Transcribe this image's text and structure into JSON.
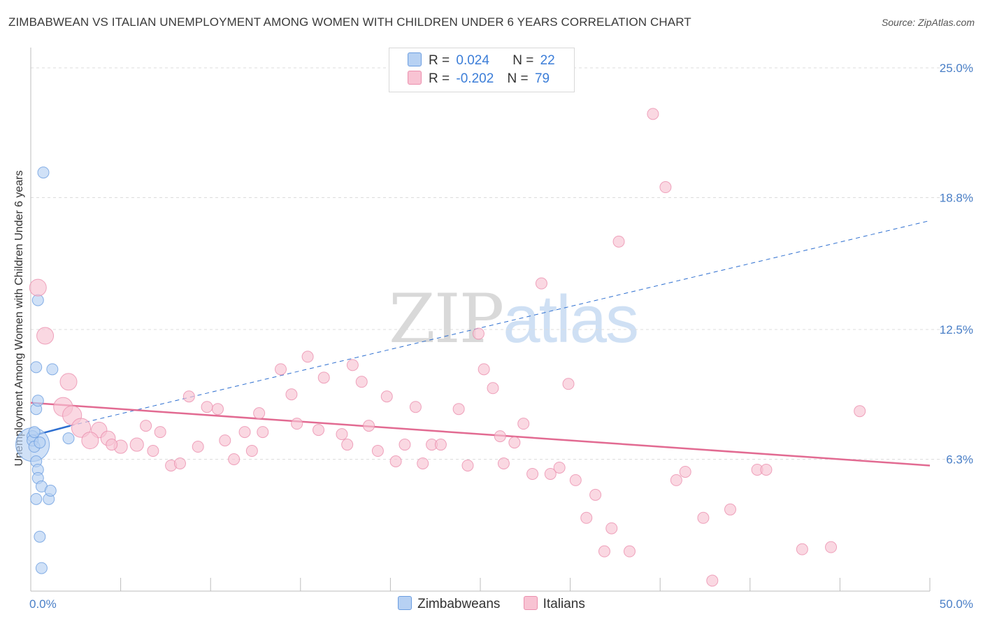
{
  "title": "ZIMBABWEAN VS ITALIAN UNEMPLOYMENT AMONG WOMEN WITH CHILDREN UNDER 6 YEARS CORRELATION CHART",
  "source": "Source: ZipAtlas.com",
  "watermark": {
    "zip": "ZIP",
    "atlas": "atlas"
  },
  "legend": {
    "zimbabweans": {
      "r_label": "R =",
      "r_value": "0.024",
      "n_label": "N =",
      "n_value": "22"
    },
    "italians": {
      "r_label": "R =",
      "r_value": "-0.202",
      "n_label": "N =",
      "n_value": "79"
    }
  },
  "bottom_legend": {
    "zimbabweans": "Zimbabweans",
    "italians": "Italians"
  },
  "colors": {
    "zimbabweans_fill": "#b7d1f3",
    "zimbabweans_stroke": "#6b9de0",
    "zimbabweans_line": "#2e6fd0",
    "italians_fill": "#f8c3d3",
    "italians_stroke": "#eb8fae",
    "italians_line": "#e26b92",
    "tick": "#4a7fc7"
  },
  "chart_data": {
    "type": "scatter",
    "title": "ZIMBABWEAN VS ITALIAN UNEMPLOYMENT AMONG WOMEN WITH CHILDREN UNDER 6 YEARS CORRELATION CHART",
    "xlabel": "",
    "ylabel": "Unemployment Among Women with Children Under 6 years",
    "xlim": [
      0,
      50
    ],
    "ylim": [
      0,
      25
    ],
    "x_tick_labels": [
      "0.0%",
      "50.0%"
    ],
    "y_ticks": [
      6.3,
      12.5,
      18.8,
      25.0
    ],
    "y_tick_labels": [
      "6.3%",
      "12.5%",
      "18.8%",
      "25.0%"
    ],
    "grid": true,
    "series": [
      {
        "name": "Zimbabweans",
        "points": [
          {
            "x": 0.1,
            "y": 7.0,
            "s": 3
          },
          {
            "x": 0.1,
            "y": 7.4,
            "s": 1
          },
          {
            "x": 0.1,
            "y": 7.2,
            "s": 1
          },
          {
            "x": 0.2,
            "y": 7.6,
            "s": 1
          },
          {
            "x": 0.3,
            "y": 8.7,
            "s": 1
          },
          {
            "x": 0.4,
            "y": 9.1,
            "s": 1
          },
          {
            "x": 0.3,
            "y": 10.7,
            "s": 1
          },
          {
            "x": 0.4,
            "y": 13.9,
            "s": 1
          },
          {
            "x": 0.7,
            "y": 20.0,
            "s": 1
          },
          {
            "x": 0.3,
            "y": 6.2,
            "s": 1
          },
          {
            "x": 0.4,
            "y": 5.8,
            "s": 1
          },
          {
            "x": 0.4,
            "y": 5.4,
            "s": 1
          },
          {
            "x": 0.6,
            "y": 5.0,
            "s": 1
          },
          {
            "x": 1.0,
            "y": 4.4,
            "s": 1
          },
          {
            "x": 1.1,
            "y": 4.8,
            "s": 1
          },
          {
            "x": 0.3,
            "y": 4.4,
            "s": 1
          },
          {
            "x": 0.5,
            "y": 2.6,
            "s": 1
          },
          {
            "x": 0.6,
            "y": 1.1,
            "s": 1
          },
          {
            "x": 1.2,
            "y": 10.6,
            "s": 1
          },
          {
            "x": 2.1,
            "y": 7.3,
            "s": 1
          },
          {
            "x": 0.2,
            "y": 6.9,
            "s": 1
          },
          {
            "x": 0.5,
            "y": 7.1,
            "s": 1
          }
        ]
      },
      {
        "name": "Italians",
        "points": [
          {
            "x": 0.4,
            "y": 14.5,
            "s": 1.5
          },
          {
            "x": 0.8,
            "y": 12.2,
            "s": 1.5
          },
          {
            "x": 2.1,
            "y": 10.0,
            "s": 1.5
          },
          {
            "x": 1.8,
            "y": 8.8,
            "s": 1.7
          },
          {
            "x": 2.3,
            "y": 8.4,
            "s": 1.7
          },
          {
            "x": 2.8,
            "y": 7.8,
            "s": 1.7
          },
          {
            "x": 3.8,
            "y": 7.7,
            "s": 1.4
          },
          {
            "x": 3.3,
            "y": 7.2,
            "s": 1.5
          },
          {
            "x": 4.3,
            "y": 7.3,
            "s": 1.3
          },
          {
            "x": 5.0,
            "y": 6.9,
            "s": 1.2
          },
          {
            "x": 5.9,
            "y": 7.0,
            "s": 1.2
          },
          {
            "x": 6.4,
            "y": 7.9,
            "s": 1
          },
          {
            "x": 7.2,
            "y": 7.6,
            "s": 1
          },
          {
            "x": 6.8,
            "y": 6.7,
            "s": 1
          },
          {
            "x": 7.8,
            "y": 6.0,
            "s": 1
          },
          {
            "x": 8.3,
            "y": 6.1,
            "s": 1
          },
          {
            "x": 8.8,
            "y": 9.3,
            "s": 1
          },
          {
            "x": 9.3,
            "y": 6.9,
            "s": 1
          },
          {
            "x": 9.8,
            "y": 8.8,
            "s": 1
          },
          {
            "x": 10.4,
            "y": 8.7,
            "s": 1
          },
          {
            "x": 10.8,
            "y": 7.2,
            "s": 1
          },
          {
            "x": 11.3,
            "y": 6.3,
            "s": 1
          },
          {
            "x": 11.9,
            "y": 7.6,
            "s": 1
          },
          {
            "x": 12.3,
            "y": 6.7,
            "s": 1
          },
          {
            "x": 12.7,
            "y": 8.5,
            "s": 1
          },
          {
            "x": 12.9,
            "y": 7.6,
            "s": 1
          },
          {
            "x": 13.9,
            "y": 10.6,
            "s": 1
          },
          {
            "x": 14.5,
            "y": 9.4,
            "s": 1
          },
          {
            "x": 14.8,
            "y": 8.0,
            "s": 1
          },
          {
            "x": 15.4,
            "y": 11.2,
            "s": 1
          },
          {
            "x": 16.0,
            "y": 7.7,
            "s": 1
          },
          {
            "x": 16.3,
            "y": 10.2,
            "s": 1
          },
          {
            "x": 17.3,
            "y": 7.5,
            "s": 1
          },
          {
            "x": 17.6,
            "y": 7.0,
            "s": 1
          },
          {
            "x": 17.9,
            "y": 10.8,
            "s": 1
          },
          {
            "x": 18.4,
            "y": 10.0,
            "s": 1
          },
          {
            "x": 18.8,
            "y": 7.9,
            "s": 1
          },
          {
            "x": 19.3,
            "y": 6.7,
            "s": 1
          },
          {
            "x": 19.8,
            "y": 9.3,
            "s": 1
          },
          {
            "x": 20.3,
            "y": 6.2,
            "s": 1
          },
          {
            "x": 20.8,
            "y": 7.0,
            "s": 1
          },
          {
            "x": 21.4,
            "y": 8.8,
            "s": 1
          },
          {
            "x": 21.8,
            "y": 6.1,
            "s": 1
          },
          {
            "x": 22.3,
            "y": 7.0,
            "s": 1
          },
          {
            "x": 22.8,
            "y": 7.0,
            "s": 1
          },
          {
            "x": 23.8,
            "y": 8.7,
            "s": 1
          },
          {
            "x": 24.3,
            "y": 6.0,
            "s": 1
          },
          {
            "x": 24.9,
            "y": 12.3,
            "s": 1
          },
          {
            "x": 25.2,
            "y": 10.6,
            "s": 1
          },
          {
            "x": 25.7,
            "y": 9.7,
            "s": 1
          },
          {
            "x": 26.1,
            "y": 7.4,
            "s": 1
          },
          {
            "x": 26.3,
            "y": 6.1,
            "s": 1
          },
          {
            "x": 26.9,
            "y": 7.1,
            "s": 1
          },
          {
            "x": 27.4,
            "y": 8.0,
            "s": 1
          },
          {
            "x": 27.9,
            "y": 5.6,
            "s": 1
          },
          {
            "x": 28.4,
            "y": 14.7,
            "s": 1
          },
          {
            "x": 28.9,
            "y": 5.6,
            "s": 1
          },
          {
            "x": 29.4,
            "y": 5.9,
            "s": 1
          },
          {
            "x": 29.9,
            "y": 9.9,
            "s": 1
          },
          {
            "x": 30.3,
            "y": 5.3,
            "s": 1
          },
          {
            "x": 30.9,
            "y": 3.5,
            "s": 1
          },
          {
            "x": 31.4,
            "y": 4.6,
            "s": 1
          },
          {
            "x": 31.9,
            "y": 1.9,
            "s": 1
          },
          {
            "x": 32.3,
            "y": 3.0,
            "s": 1
          },
          {
            "x": 32.7,
            "y": 16.7,
            "s": 1
          },
          {
            "x": 33.3,
            "y": 1.9,
            "s": 1
          },
          {
            "x": 34.6,
            "y": 22.8,
            "s": 1
          },
          {
            "x": 35.3,
            "y": 19.3,
            "s": 1
          },
          {
            "x": 35.9,
            "y": 5.3,
            "s": 1
          },
          {
            "x": 36.4,
            "y": 5.7,
            "s": 1
          },
          {
            "x": 37.4,
            "y": 3.5,
            "s": 1
          },
          {
            "x": 37.9,
            "y": 0.5,
            "s": 1
          },
          {
            "x": 38.9,
            "y": 3.9,
            "s": 1
          },
          {
            "x": 40.4,
            "y": 5.8,
            "s": 1
          },
          {
            "x": 40.9,
            "y": 5.8,
            "s": 1
          },
          {
            "x": 42.9,
            "y": 2.0,
            "s": 1
          },
          {
            "x": 44.5,
            "y": 2.1,
            "s": 1
          },
          {
            "x": 46.1,
            "y": 8.6,
            "s": 1
          },
          {
            "x": 4.5,
            "y": 7.0,
            "s": 1
          }
        ]
      }
    ],
    "trend_lines": [
      {
        "name": "Zimbabweans",
        "style": "solid",
        "x": [
          0,
          2.2
        ],
        "y": [
          7.4,
          7.9
        ]
      },
      {
        "name": "Zimbabweans",
        "style": "dashed",
        "x": [
          2.2,
          50
        ],
        "y": [
          7.9,
          17.7
        ]
      },
      {
        "name": "Italians",
        "style": "solid",
        "x": [
          0,
          50
        ],
        "y": [
          9.0,
          6.0
        ]
      }
    ]
  }
}
